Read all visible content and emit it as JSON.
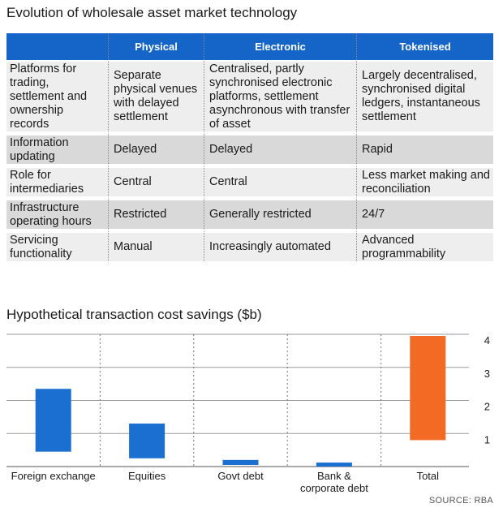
{
  "table": {
    "title": "Evolution of wholesale asset market technology",
    "columns": [
      "",
      "Physical",
      "Electronic",
      "Tokenised"
    ],
    "rows": [
      {
        "label": "Platforms for trading, settlement and ownership records",
        "cells": [
          "Separate physical venues with delayed settlement",
          "Centralised, partly synchronised electronic platforms, settlement asynchronous with transfer of asset",
          "Largely decentralised, synchronised digital ledgers, instantaneous settlement"
        ]
      },
      {
        "label": "Information updating",
        "cells": [
          "Delayed",
          "Delayed",
          "Rapid"
        ]
      },
      {
        "label": "Role for intermediaries",
        "cells": [
          "Central",
          "Central",
          "Less market making and reconciliation"
        ]
      },
      {
        "label": "Infrastructure operating hours",
        "cells": [
          "Restricted",
          "Generally restricted",
          "24/7"
        ]
      },
      {
        "label": "Servicing functionality",
        "cells": [
          "Manual",
          "Increasingly automated",
          "Advanced programmability"
        ]
      }
    ]
  },
  "chart_data": {
    "type": "bar",
    "title": "Hypothetical transaction cost savings ($b)",
    "categories": [
      "Foreign exchange",
      "Equities",
      "Govt debt",
      "Bank & corporate debt",
      "Total"
    ],
    "ranges": [
      [
        0.45,
        2.35
      ],
      [
        0.25,
        1.3
      ],
      [
        0.05,
        0.2
      ],
      [
        0.0,
        0.12
      ],
      [
        0.8,
        3.95
      ]
    ],
    "ylim": [
      0,
      4
    ],
    "yticks": [
      1,
      2,
      3,
      4
    ],
    "axis_side": "right",
    "grid": true,
    "colors": {
      "default": "#1a6fd1",
      "highlight": "#f26a24"
    },
    "highlight_index": 4
  },
  "source": "SOURCE: RBA"
}
